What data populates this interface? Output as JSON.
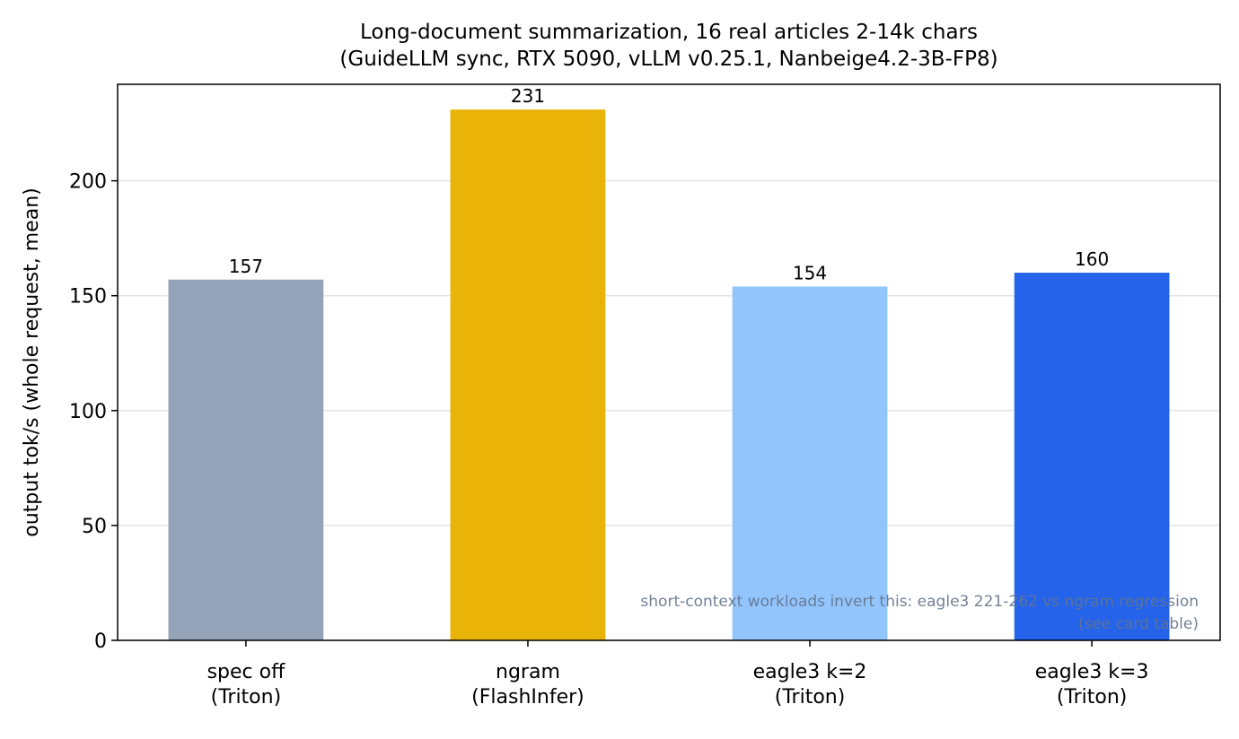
{
  "chart_data": {
    "type": "bar",
    "title": "Long-document summarization, 16 real articles 2-14k chars\n(GuideLLM sync, RTX 5090, vLLM v0.25.1, Nanbeige4.2-3B-FP8)",
    "y_label": "output tok/s (whole request, mean)",
    "categories": [
      "spec off\n(Triton)",
      "ngram\n(FlashInfer)",
      "eagle3 k=2\n(Triton)",
      "eagle3 k=3\n(Triton)"
    ],
    "values": [
      157,
      231,
      154,
      160
    ],
    "colors": [
      "#94a3b8",
      "#eab308",
      "#93c5fd",
      "#2563eb"
    ],
    "ylim": [
      0,
      242
    ],
    "yticks": [
      0,
      50,
      100,
      150,
      200
    ],
    "grid": true,
    "annotation": "short-context workloads invert this: eagle3 221-262 vs ngram regression\n(see card table)"
  }
}
